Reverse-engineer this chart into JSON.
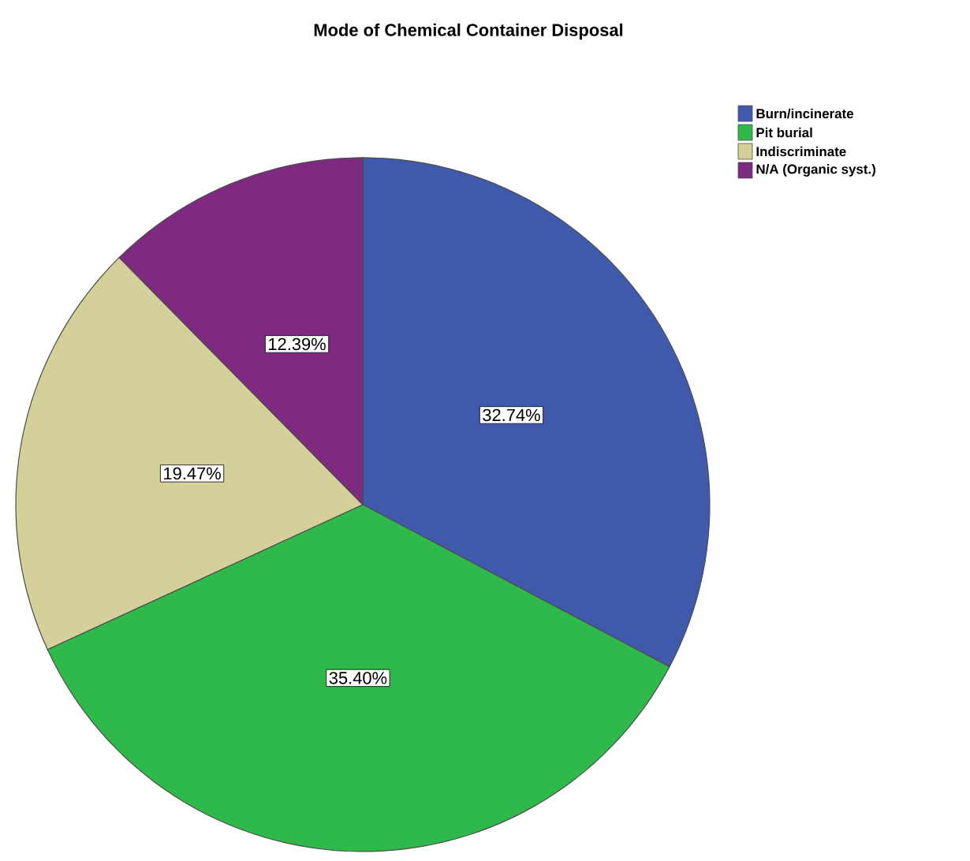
{
  "chart_data": {
    "type": "pie",
    "title": "Mode of Chemical Container Disposal",
    "categories": [
      "Burn/incinerate",
      "Pit burial",
      "Indiscriminate",
      "N/A (Organic syst.)"
    ],
    "values": [
      32.74,
      35.4,
      19.47,
      12.39
    ],
    "value_labels": [
      "32.74%",
      "35.40%",
      "19.47%",
      "12.39%"
    ],
    "colors": [
      "#3f5aad",
      "#2fb94a",
      "#d5cf99",
      "#7d2a80"
    ],
    "legend": "top right"
  }
}
